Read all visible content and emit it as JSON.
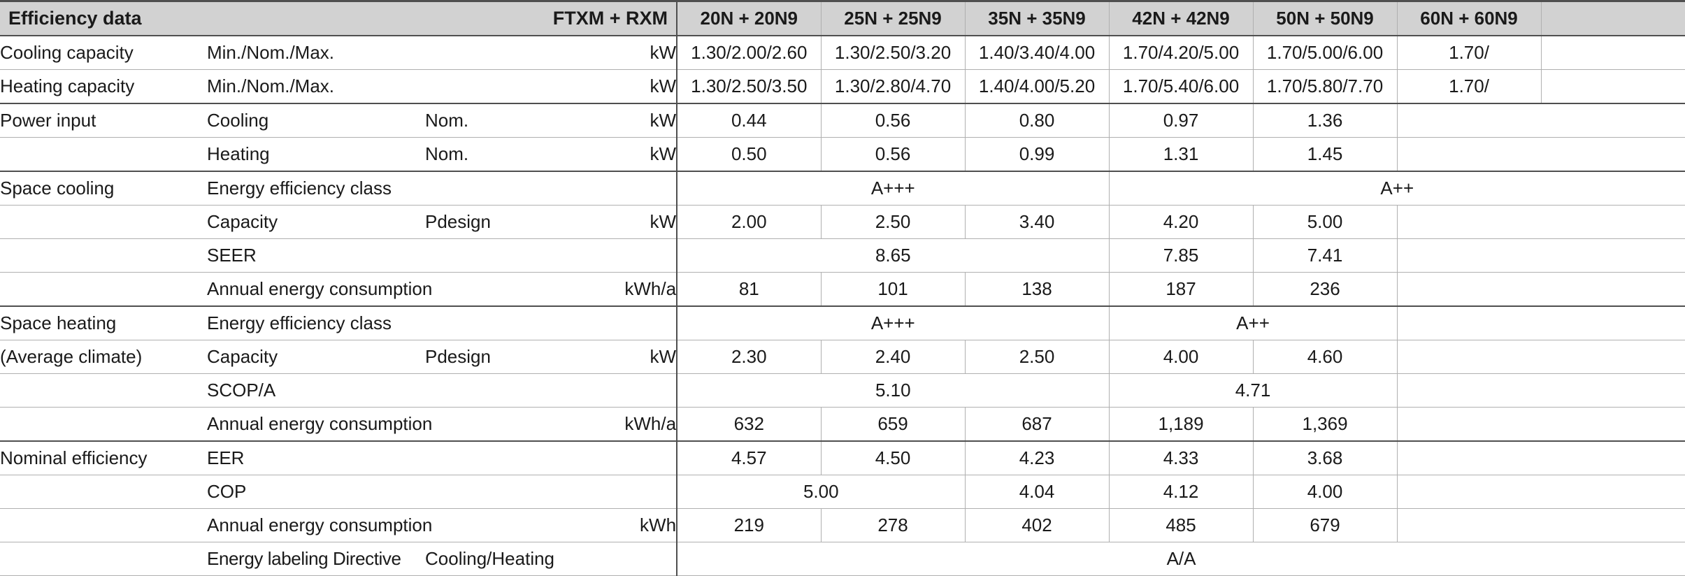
{
  "colors": {
    "header_bg": "#d2d2d2",
    "border_dark": "#4f4f4f",
    "border_light": "#b0b0b0",
    "text": "#1a1a1a"
  },
  "table": {
    "title": "Efficiency data",
    "series_label": "FTXM + RXM",
    "model_headers": [
      "20N + 20N9",
      "25N + 25N9",
      "35N + 35N9",
      "42N + 42N9",
      "50N + 50N9",
      "60N + 60N9",
      ""
    ],
    "rows": [
      {
        "group": "Cooling capacity",
        "attr": "Min./Nom./Max.",
        "sub": "",
        "unit": "kW",
        "group_start": false,
        "cells": [
          {
            "text": "1.30/2.00/2.60",
            "span": 1
          },
          {
            "text": "1.30/2.50/3.20",
            "span": 1
          },
          {
            "text": "1.40/3.40/4.00",
            "span": 1
          },
          {
            "text": "1.70/4.20/5.00",
            "span": 1
          },
          {
            "text": "1.70/5.00/6.00",
            "span": 1
          },
          {
            "text": "1.70/",
            "span": 1
          },
          {
            "text": "",
            "span": 1
          }
        ]
      },
      {
        "group": "Heating capacity",
        "attr": "Min./Nom./Max.",
        "sub": "",
        "unit": "kW",
        "group_start": false,
        "cells": [
          {
            "text": "1.30/2.50/3.50",
            "span": 1
          },
          {
            "text": "1.30/2.80/4.70",
            "span": 1
          },
          {
            "text": "1.40/4.00/5.20",
            "span": 1
          },
          {
            "text": "1.70/5.40/6.00",
            "span": 1
          },
          {
            "text": "1.70/5.80/7.70",
            "span": 1
          },
          {
            "text": "1.70/",
            "span": 1
          },
          {
            "text": "",
            "span": 1
          }
        ]
      },
      {
        "group": "Power input",
        "attr": "Cooling",
        "sub": "Nom.",
        "unit": "kW",
        "group_start": true,
        "cells": [
          {
            "text": "0.44",
            "span": 1
          },
          {
            "text": "0.56",
            "span": 1
          },
          {
            "text": "0.80",
            "span": 1
          },
          {
            "text": "0.97",
            "span": 1
          },
          {
            "text": "1.36",
            "span": 1
          },
          {
            "text": "",
            "span": 2
          }
        ]
      },
      {
        "group": "",
        "attr": "Heating",
        "sub": "Nom.",
        "unit": "kW",
        "group_start": false,
        "cells": [
          {
            "text": "0.50",
            "span": 1
          },
          {
            "text": "0.56",
            "span": 1
          },
          {
            "text": "0.99",
            "span": 1
          },
          {
            "text": "1.31",
            "span": 1
          },
          {
            "text": "1.45",
            "span": 1
          },
          {
            "text": "",
            "span": 2
          }
        ]
      },
      {
        "group": "Space cooling",
        "attr": "Energy efficiency class",
        "sub": "",
        "unit": "",
        "group_start": true,
        "cells": [
          {
            "text": "A+++",
            "span": 3
          },
          {
            "text": "A++",
            "span": 4
          }
        ]
      },
      {
        "group": "",
        "attr": "Capacity",
        "sub": "Pdesign",
        "unit": "kW",
        "group_start": false,
        "cells": [
          {
            "text": "2.00",
            "span": 1
          },
          {
            "text": "2.50",
            "span": 1
          },
          {
            "text": "3.40",
            "span": 1
          },
          {
            "text": "4.20",
            "span": 1
          },
          {
            "text": "5.00",
            "span": 1
          },
          {
            "text": "",
            "span": 2
          }
        ]
      },
      {
        "group": "",
        "attr": "SEER",
        "sub": "",
        "unit": "",
        "group_start": false,
        "cells": [
          {
            "text": "8.65",
            "span": 3
          },
          {
            "text": "7.85",
            "span": 1
          },
          {
            "text": "7.41",
            "span": 1
          },
          {
            "text": "",
            "span": 2
          }
        ]
      },
      {
        "group": "",
        "attr": "Annual energy consumption",
        "sub": "",
        "unit": "kWh/a",
        "group_start": false,
        "cells": [
          {
            "text": "81",
            "span": 1
          },
          {
            "text": "101",
            "span": 1
          },
          {
            "text": "138",
            "span": 1
          },
          {
            "text": "187",
            "span": 1
          },
          {
            "text": "236",
            "span": 1
          },
          {
            "text": "",
            "span": 2
          }
        ]
      },
      {
        "group": "Space heating",
        "attr": "Energy efficiency class",
        "sub": "",
        "unit": "",
        "group_start": true,
        "cells": [
          {
            "text": "A+++",
            "span": 3
          },
          {
            "text": "A++",
            "span": 2
          },
          {
            "text": "",
            "span": 2
          }
        ]
      },
      {
        "group": "(Average climate)",
        "attr": "Capacity",
        "sub": "Pdesign",
        "unit": "kW",
        "group_start": false,
        "cells": [
          {
            "text": "2.30",
            "span": 1
          },
          {
            "text": "2.40",
            "span": 1
          },
          {
            "text": "2.50",
            "span": 1
          },
          {
            "text": "4.00",
            "span": 1
          },
          {
            "text": "4.60",
            "span": 1
          },
          {
            "text": "",
            "span": 2
          }
        ]
      },
      {
        "group": "",
        "attr": "SCOP/A",
        "sub": "",
        "unit": "",
        "group_start": false,
        "cells": [
          {
            "text": "5.10",
            "span": 3
          },
          {
            "text": "4.71",
            "span": 2
          },
          {
            "text": "",
            "span": 2
          }
        ]
      },
      {
        "group": "",
        "attr": "Annual energy consumption",
        "sub": "",
        "unit": "kWh/a",
        "group_start": false,
        "cells": [
          {
            "text": "632",
            "span": 1
          },
          {
            "text": "659",
            "span": 1
          },
          {
            "text": "687",
            "span": 1
          },
          {
            "text": "1,189",
            "span": 1
          },
          {
            "text": "1,369",
            "span": 1
          },
          {
            "text": "",
            "span": 2
          }
        ]
      },
      {
        "group": "Nominal efficiency",
        "attr": "EER",
        "sub": "",
        "unit": "",
        "group_start": true,
        "cells": [
          {
            "text": "4.57",
            "span": 1
          },
          {
            "text": "4.50",
            "span": 1
          },
          {
            "text": "4.23",
            "span": 1
          },
          {
            "text": "4.33",
            "span": 1
          },
          {
            "text": "3.68",
            "span": 1
          },
          {
            "text": "",
            "span": 2
          }
        ]
      },
      {
        "group": "",
        "attr": "COP",
        "sub": "",
        "unit": "",
        "group_start": false,
        "cells": [
          {
            "text": "5.00",
            "span": 2
          },
          {
            "text": "4.04",
            "span": 1
          },
          {
            "text": "4.12",
            "span": 1
          },
          {
            "text": "4.00",
            "span": 1
          },
          {
            "text": "",
            "span": 2
          }
        ]
      },
      {
        "group": "",
        "attr": "Annual energy consumption",
        "sub": "",
        "unit": "kWh",
        "group_start": false,
        "cells": [
          {
            "text": "219",
            "span": 1
          },
          {
            "text": "278",
            "span": 1
          },
          {
            "text": "402",
            "span": 1
          },
          {
            "text": "485",
            "span": 1
          },
          {
            "text": "679",
            "span": 1
          },
          {
            "text": "",
            "span": 2
          }
        ]
      },
      {
        "group": "",
        "attr": "Energy labeling Directive",
        "attr_condensed": true,
        "sub": "Cooling/Heating",
        "unit": "",
        "group_start": false,
        "cells": [
          {
            "text": "A/A",
            "span": 7
          }
        ]
      }
    ]
  }
}
